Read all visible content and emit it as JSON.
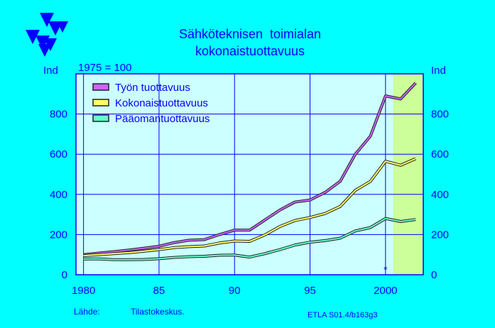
{
  "colors": {
    "background": "#00ffff",
    "plot_area": "#ccffff",
    "forecast_band": "#ccff99",
    "text": "#0000ff",
    "grid": "#0000ff",
    "logo": "#0000ff"
  },
  "logo": {
    "icon": "etla-triangles-logo"
  },
  "title_lines": [
    "Sähköteknisen  toimialan",
    "kokonaistuottavuus"
  ],
  "footer": {
    "source_label": "Lähde:",
    "source_text": "Tilastokeskus.",
    "code": "ETLA S01.4/b163g3"
  },
  "chart_data": {
    "type": "line",
    "base_note": "1975 = 100",
    "y_unit_left": "Ind",
    "y_unit_right": "Ind",
    "ylim": [
      0,
      1000
    ],
    "yticks": [
      0,
      200,
      400,
      600,
      800
    ],
    "xlim": [
      1979.5,
      2002.5
    ],
    "xticks": [
      1980,
      1985,
      1990,
      1995,
      2000
    ],
    "x_tick_labels": [
      "1980",
      "85",
      "90",
      "95",
      "2000"
    ],
    "grid": true,
    "forecast_band": [
      2000.5,
      2002.5
    ],
    "marker_note": "*",
    "marker_at": [
      2000,
      45
    ],
    "legend_position": "top-left",
    "x": [
      1980,
      1981,
      1982,
      1983,
      1984,
      1985,
      1986,
      1987,
      1988,
      1989,
      1990,
      1991,
      1992,
      1993,
      1994,
      1995,
      1996,
      1997,
      1998,
      1999,
      2000,
      2001,
      2002
    ],
    "series": [
      {
        "name": "Työn tuottavuus",
        "color": "#cc66ff",
        "values": [
          100,
          108,
          115,
          123,
          132,
          142,
          160,
          172,
          175,
          200,
          222,
          222,
          272,
          322,
          362,
          372,
          410,
          465,
          600,
          690,
          890,
          875,
          955
        ]
      },
      {
        "name": "Kokonaistuottavuus",
        "color": "#ffff66",
        "values": [
          95,
          100,
          105,
          110,
          117,
          125,
          135,
          140,
          143,
          158,
          168,
          166,
          198,
          240,
          270,
          285,
          305,
          340,
          420,
          465,
          565,
          545,
          578
        ]
      },
      {
        "name": "Pääomantuottavuus",
        "color": "#66ffcc",
        "values": [
          78,
          79,
          75,
          75,
          76,
          80,
          86,
          90,
          92,
          97,
          98,
          88,
          105,
          125,
          148,
          162,
          170,
          182,
          218,
          235,
          280,
          265,
          275
        ]
      }
    ]
  }
}
